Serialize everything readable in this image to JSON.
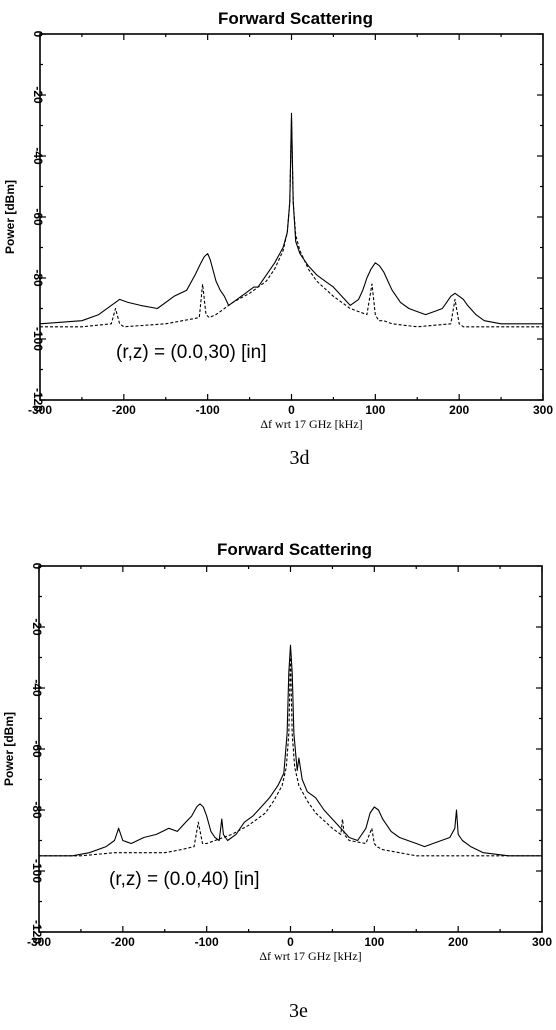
{
  "chart_data": [
    {
      "type": "line",
      "title": "Forward Scattering",
      "xlabel": "Δf wrt 17 GHz [kHz]",
      "ylabel": "Power [dBm]",
      "xlim": [
        -300,
        300
      ],
      "ylim": [
        -120,
        0
      ],
      "xticks": [
        "-300",
        "-200",
        "-100",
        "0",
        "100",
        "200",
        "300"
      ],
      "yticks": [
        "0",
        "-20",
        "-40",
        "-60",
        "-80",
        "-100",
        "-120"
      ],
      "annotation": "(r,z) = (0.0,30) [in]",
      "caption": "3d",
      "grid": false,
      "series": [
        {
          "style": "solid",
          "x": [
            -300,
            -250,
            -230,
            -215,
            -205,
            -195,
            -180,
            -160,
            -140,
            -125,
            -115,
            -108,
            -104,
            -100,
            -97,
            -94,
            -90,
            -85,
            -80,
            -75,
            -70,
            -65,
            -60,
            -55,
            -50,
            -45,
            -40,
            -30,
            -20,
            -10,
            -5,
            -2,
            0,
            2,
            5,
            10,
            20,
            30,
            40,
            50,
            60,
            70,
            80,
            85,
            90,
            95,
            100,
            105,
            110,
            115,
            120,
            130,
            140,
            150,
            160,
            170,
            180,
            185,
            190,
            195,
            200,
            205,
            210,
            220,
            230,
            250,
            270,
            300
          ],
          "y": [
            -95,
            -94,
            -92,
            -89,
            -87,
            -88,
            -89,
            -90,
            -86,
            -84,
            -79,
            -75,
            -73,
            -72,
            -74,
            -77,
            -81,
            -84,
            -86,
            -89,
            -88,
            -87,
            -86,
            -85,
            -84,
            -83,
            -83,
            -79,
            -75,
            -70,
            -65,
            -55,
            -26,
            -55,
            -68,
            -72,
            -76,
            -79,
            -81,
            -83,
            -86,
            -89,
            -87,
            -84,
            -80,
            -77,
            -75,
            -76,
            -78,
            -81,
            -84,
            -88,
            -90,
            -91,
            -92,
            -91,
            -90,
            -88,
            -86,
            -85,
            -86,
            -87,
            -89,
            -92,
            -94,
            -95,
            -95,
            -95
          ]
        },
        {
          "style": "dashed",
          "x": [
            -300,
            -250,
            -215,
            -210,
            -205,
            -200,
            -150,
            -110,
            -106,
            -102,
            -98,
            -90,
            -80,
            -70,
            -50,
            -30,
            -20,
            -10,
            -5,
            -2,
            0,
            2,
            5,
            10,
            20,
            30,
            50,
            70,
            90,
            96,
            100,
            104,
            110,
            120,
            150,
            190,
            195,
            200,
            205,
            250,
            300
          ],
          "y": [
            -96,
            -96,
            -95,
            -90,
            -95,
            -96,
            -95,
            -93,
            -82,
            -92,
            -93,
            -92,
            -90,
            -88,
            -85,
            -81,
            -77,
            -71,
            -65,
            -55,
            -28,
            -55,
            -66,
            -71,
            -77,
            -81,
            -86,
            -90,
            -92,
            -82,
            -92,
            -94,
            -94,
            -95,
            -96,
            -95,
            -87,
            -95,
            -96,
            -96,
            -96
          ]
        }
      ]
    },
    {
      "type": "line",
      "title": "Forward Scattering",
      "xlabel": "Δf wrt 17 GHz [kHz]",
      "ylabel": "Power [dBm]",
      "xlim": [
        -300,
        300
      ],
      "ylim": [
        -120,
        0
      ],
      "xticks": [
        "-300",
        "-200",
        "-100",
        "0",
        "100",
        "200",
        "300"
      ],
      "yticks": [
        "0",
        "-20",
        "-40",
        "-60",
        "-80",
        "-100",
        "-120"
      ],
      "annotation": "(r,z) = (0.0,40) [in]",
      "caption": "3e",
      "grid": false,
      "series": [
        {
          "style": "solid",
          "x": [
            -300,
            -260,
            -240,
            -220,
            -210,
            -205,
            -200,
            -190,
            -175,
            -160,
            -145,
            -135,
            -125,
            -118,
            -112,
            -108,
            -104,
            -100,
            -95,
            -90,
            -85,
            -82,
            -80,
            -75,
            -65,
            -55,
            -45,
            -35,
            -25,
            -15,
            -8,
            -4,
            -2,
            0,
            2,
            4,
            8,
            10,
            14,
            20,
            30,
            40,
            50,
            60,
            70,
            80,
            90,
            95,
            100,
            105,
            110,
            120,
            130,
            140,
            150,
            160,
            170,
            180,
            190,
            196,
            198,
            200,
            205,
            215,
            230,
            260,
            300
          ],
          "y": [
            -95,
            -95,
            -94,
            -92,
            -90,
            -86,
            -90,
            -91,
            -89,
            -88,
            -86,
            -87,
            -84,
            -82,
            -79,
            -78,
            -79,
            -82,
            -87,
            -89,
            -90,
            -83,
            -88,
            -90,
            -88,
            -84,
            -82,
            -79,
            -76,
            -72,
            -68,
            -55,
            -35,
            -26,
            -35,
            -55,
            -67,
            -63,
            -70,
            -74,
            -76,
            -80,
            -83,
            -86,
            -89,
            -90,
            -86,
            -81,
            -79,
            -80,
            -83,
            -87,
            -89,
            -90,
            -91,
            -92,
            -91,
            -90,
            -89,
            -86,
            -80,
            -88,
            -90,
            -92,
            -94,
            -95,
            -95
          ]
        },
        {
          "style": "dashed",
          "x": [
            -300,
            -250,
            -210,
            -200,
            -150,
            -130,
            -115,
            -110,
            -105,
            -100,
            -90,
            -70,
            -50,
            -30,
            -20,
            -10,
            -5,
            -2,
            0,
            2,
            5,
            10,
            20,
            30,
            50,
            60,
            62,
            64,
            70,
            90,
            97,
            100,
            103,
            110,
            130,
            150,
            200,
            250,
            300
          ],
          "y": [
            -95,
            -95,
            -94,
            -94,
            -94,
            -93,
            -92,
            -84,
            -91,
            -91,
            -90,
            -88,
            -85,
            -81,
            -77,
            -72,
            -66,
            -55,
            -30,
            -55,
            -66,
            -72,
            -77,
            -81,
            -86,
            -88,
            -83,
            -88,
            -90,
            -91,
            -86,
            -91,
            -92,
            -93,
            -94,
            -95,
            -95,
            -95,
            -95
          ]
        }
      ]
    }
  ]
}
